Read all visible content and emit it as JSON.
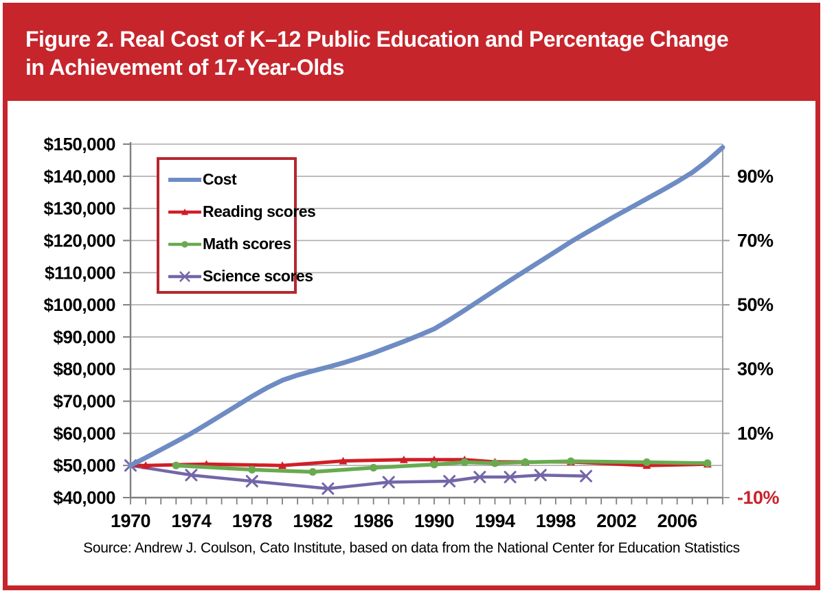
{
  "header": {
    "title_lines": [
      "Figure 2. Real Cost of K–12 Public Education and Percentage Change",
      "in Achievement of 17-Year-Olds"
    ]
  },
  "source": "Source: Andrew J. Coulson, Cato Institute, based on data from the National Center for Education Statistics",
  "colors": {
    "banner_red": "#C6252C",
    "frame_red": "#C6252C",
    "legend_border_red": "#B5272D",
    "negative_label_red": "#C8232B",
    "gridline_grey": "#ACACAC",
    "axis_grey": "#7F7F7F"
  },
  "chart_data": {
    "type": "line",
    "title": "Real Cost of K–12 Public Education and Percentage Change in Achievement of 17-Year-Olds",
    "x_axis": {
      "tick_labels": [
        "1970",
        "1974",
        "1978",
        "1982",
        "1986",
        "1990",
        "1994",
        "1998",
        "2002",
        "2006"
      ],
      "range": [
        1970,
        2009
      ],
      "minor_ticks_every_year": true
    },
    "y_left_axis": {
      "tick_labels": [
        "$150,000",
        "$140,000",
        "$130,000",
        "$120,000",
        "$110,000",
        "$100,000",
        "$90,000",
        "$80,000",
        "$70,000",
        "$60,000",
        "$50,000",
        "$40,000"
      ],
      "range_dollars": [
        40000,
        150000
      ],
      "grid": true
    },
    "y_right_axis": {
      "tick_labels": [
        "90%",
        "70%",
        "50%",
        "30%",
        "10%",
        "-10%"
      ],
      "tick_values": [
        90,
        70,
        50,
        30,
        10,
        -10
      ],
      "range_percent": [
        -10,
        100
      ],
      "zero_aligns_with_dollars": 50000
    },
    "legend_position": "top-left-inside",
    "series": [
      {
        "name": "Cost",
        "axis": "left",
        "unit": "dollars",
        "color": "#6E8CC3",
        "marker": "none",
        "line_width": 7,
        "markers_from_index": 0,
        "points": [
          [
            1970,
            50000
          ],
          [
            1971,
            52400
          ],
          [
            1972,
            54900
          ],
          [
            1973,
            57400
          ],
          [
            1974,
            60000
          ],
          [
            1975,
            62800
          ],
          [
            1976,
            65700
          ],
          [
            1977,
            68600
          ],
          [
            1978,
            71500
          ],
          [
            1979,
            74200
          ],
          [
            1980,
            76500
          ],
          [
            1981,
            78100
          ],
          [
            1982,
            79400
          ],
          [
            1983,
            80600
          ],
          [
            1984,
            81900
          ],
          [
            1985,
            83400
          ],
          [
            1986,
            85000
          ],
          [
            1987,
            86800
          ],
          [
            1988,
            88600
          ],
          [
            1989,
            90500
          ],
          [
            1990,
            92500
          ],
          [
            1991,
            95300
          ],
          [
            1992,
            98300
          ],
          [
            1993,
            101400
          ],
          [
            1994,
            104500
          ],
          [
            1995,
            107600
          ],
          [
            1996,
            110600
          ],
          [
            1997,
            113600
          ],
          [
            1998,
            116600
          ],
          [
            1999,
            119600
          ],
          [
            2000,
            122400
          ],
          [
            2001,
            125100
          ],
          [
            2002,
            127800
          ],
          [
            2003,
            130400
          ],
          [
            2004,
            133000
          ],
          [
            2005,
            135600
          ],
          [
            2006,
            138300
          ],
          [
            2007,
            141200
          ],
          [
            2008,
            144800
          ],
          [
            2009,
            149000
          ]
        ]
      },
      {
        "name": "Reading scores",
        "axis": "right",
        "unit": "percent",
        "color": "#D11E26",
        "marker": "triangle",
        "line_width": 5,
        "markers_from_index": 1,
        "points": [
          [
            1970,
            0
          ],
          [
            1971,
            0
          ],
          [
            1975,
            0.4
          ],
          [
            1980,
            0
          ],
          [
            1984,
            1.4
          ],
          [
            1988,
            1.8
          ],
          [
            1990,
            1.8
          ],
          [
            1992,
            1.8
          ],
          [
            1994,
            1.1
          ],
          [
            1996,
            1.1
          ],
          [
            1999,
            1.1
          ],
          [
            2004,
            0
          ],
          [
            2008,
            0.4
          ]
        ]
      },
      {
        "name": "Math scores",
        "axis": "right",
        "unit": "percent",
        "color": "#69AA50",
        "marker": "circle",
        "line_width": 5.5,
        "markers_from_index": 0,
        "points": [
          [
            1973,
            0
          ],
          [
            1978,
            -1.3
          ],
          [
            1982,
            -2.0
          ],
          [
            1986,
            -0.7
          ],
          [
            1990,
            0.3
          ],
          [
            1992,
            1.0
          ],
          [
            1994,
            0.7
          ],
          [
            1996,
            1.0
          ],
          [
            1999,
            1.3
          ],
          [
            2004,
            1.0
          ],
          [
            2008,
            0.7
          ]
        ]
      },
      {
        "name": "Science scores",
        "axis": "right",
        "unit": "percent",
        "color": "#7366A8",
        "marker": "x",
        "line_width": 4.5,
        "markers_from_index": 0,
        "points": [
          [
            1970,
            0
          ],
          [
            1974,
            -3.0
          ],
          [
            1978,
            -4.9
          ],
          [
            1983,
            -7.2
          ],
          [
            1987,
            -5.2
          ],
          [
            1991,
            -4.9
          ],
          [
            1993,
            -3.6
          ],
          [
            1995,
            -3.6
          ],
          [
            1997,
            -3.0
          ],
          [
            2000,
            -3.3
          ]
        ]
      }
    ]
  }
}
